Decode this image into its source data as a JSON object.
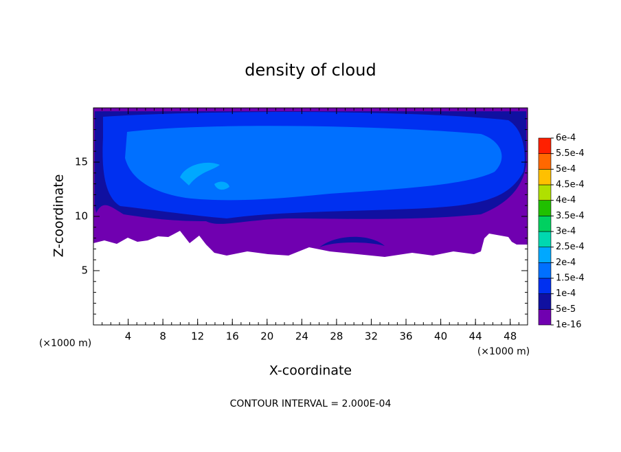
{
  "chart_data": {
    "type": "contour",
    "title": "density of cloud",
    "x_label": "X-coordinate",
    "y_label": "Z-coordinate",
    "axis_unit": "(×1000 m)",
    "annotation": "CONTOUR INTERVAL = 2.000E-04",
    "xlim": [
      0,
      50
    ],
    "xticks": [
      4,
      8,
      12,
      16,
      20,
      24,
      28,
      32,
      36,
      40,
      44,
      48
    ],
    "ylim": [
      0,
      20
    ],
    "yticks": [
      5,
      10,
      15
    ],
    "colorbar": {
      "levels": [
        {
          "value": 1e-16,
          "label": "1e-16"
        },
        {
          "value": 5e-05,
          "label": "5e-5"
        },
        {
          "value": 0.0001,
          "label": "1e-4"
        },
        {
          "value": 0.00015,
          "label": "1.5e-4"
        },
        {
          "value": 0.0002,
          "label": "2e-4"
        },
        {
          "value": 0.00025,
          "label": "2.5e-4"
        },
        {
          "value": 0.0003,
          "label": "3e-4"
        },
        {
          "value": 0.00035,
          "label": "3.5e-4"
        },
        {
          "value": 0.0004,
          "label": "4e-4"
        },
        {
          "value": 0.00045,
          "label": "4.5e-4"
        },
        {
          "value": 0.0005,
          "label": "5e-4"
        },
        {
          "value": 0.00055,
          "label": "5.5e-4"
        },
        {
          "value": 0.0006,
          "label": "6e-4"
        }
      ],
      "colors": [
        "#7000b0",
        "#1010a0",
        "#0030f0",
        "#0070ff",
        "#00a8ff",
        "#00d8b0",
        "#00d060",
        "#20c000",
        "#b0e000",
        "#ffc000",
        "#ff6800",
        "#ff2000",
        "#ff8888"
      ]
    }
  }
}
